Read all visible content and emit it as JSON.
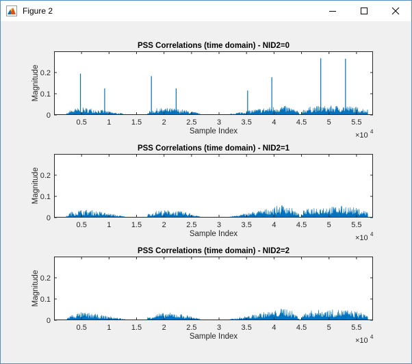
{
  "window": {
    "title": "Figure 2",
    "icon": "matlab-figure-icon",
    "controls": [
      "minimize-icon",
      "maximize-icon",
      "close-icon"
    ]
  },
  "chart_data": [
    {
      "type": "line",
      "title": "PSS Correlations (time domain) - NID2=0",
      "xlabel": "Sample Index",
      "ylabel": "Magnitude",
      "xlim": [
        0,
        58000
      ],
      "ylim": [
        0,
        0.3
      ],
      "x_ticks": [
        5000,
        10000,
        15000,
        20000,
        25000,
        30000,
        35000,
        40000,
        45000,
        50000,
        55000
      ],
      "x_tick_labels": [
        "0.5",
        "1",
        "1.5",
        "2",
        "2.5",
        "3",
        "3.5",
        "4",
        "4.5",
        "5",
        "5.5"
      ],
      "x_exponent_label": "×10",
      "x_exponent": "4",
      "y_ticks": [
        0,
        0.1,
        0.2
      ],
      "y_tick_labels": [
        "0",
        "0.1",
        "0.2"
      ],
      "color": "#0072bd",
      "segments": [
        {
          "x": [
            0,
            2000,
            3000,
            5000,
            7000,
            9000,
            11000,
            13000
          ],
          "y": [
            0,
            0,
            0.02,
            0.028,
            0.025,
            0.018,
            0.01,
            0.004
          ]
        },
        {
          "x": [
            17000,
            19000,
            21000,
            23000,
            25000,
            26500
          ],
          "y": [
            0.012,
            0.026,
            0.026,
            0.022,
            0.014,
            0.006
          ]
        },
        {
          "x": [
            32000,
            34000,
            36000,
            38000,
            40000,
            41500,
            43000,
            44500
          ],
          "y": [
            0.004,
            0.012,
            0.02,
            0.026,
            0.032,
            0.036,
            0.03,
            0.012
          ]
        },
        {
          "x": [
            45000,
            47000,
            49000,
            51000,
            53000,
            55000,
            57000
          ],
          "y": [
            0.02,
            0.034,
            0.034,
            0.036,
            0.036,
            0.03,
            0.022
          ]
        }
      ],
      "peaks": [
        {
          "x": 4800,
          "y": 0.195
        },
        {
          "x": 9200,
          "y": 0.125
        },
        {
          "x": 17700,
          "y": 0.183
        },
        {
          "x": 22200,
          "y": 0.125
        },
        {
          "x": 35200,
          "y": 0.115
        },
        {
          "x": 39600,
          "y": 0.178
        },
        {
          "x": 48500,
          "y": 0.267
        },
        {
          "x": 53000,
          "y": 0.265
        }
      ]
    },
    {
      "type": "line",
      "title": "PSS Correlations (time domain) - NID2=1",
      "xlabel": "Sample Index",
      "ylabel": "Magnitude",
      "xlim": [
        0,
        58000
      ],
      "ylim": [
        0,
        0.3
      ],
      "x_ticks": [
        5000,
        10000,
        15000,
        20000,
        25000,
        30000,
        35000,
        40000,
        45000,
        50000,
        55000
      ],
      "x_tick_labels": [
        "0.5",
        "1",
        "1.5",
        "2",
        "2.5",
        "3",
        "3.5",
        "4",
        "4.5",
        "5",
        "5.5"
      ],
      "x_exponent_label": "×10",
      "x_exponent": "4",
      "y_ticks": [
        0,
        0.1,
        0.2
      ],
      "y_tick_labels": [
        "0",
        "0.1",
        "0.2"
      ],
      "color": "#0072bd",
      "segments": [
        {
          "x": [
            0,
            2000,
            3000,
            5000,
            7000,
            9000,
            11000,
            13000
          ],
          "y": [
            0,
            0,
            0.022,
            0.03,
            0.028,
            0.02,
            0.012,
            0.004
          ]
        },
        {
          "x": [
            17000,
            19000,
            21000,
            23000,
            25000,
            26500
          ],
          "y": [
            0.014,
            0.028,
            0.028,
            0.024,
            0.016,
            0.006
          ]
        },
        {
          "x": [
            32000,
            34000,
            36000,
            38000,
            40000,
            42000,
            43000,
            44500
          ],
          "y": [
            0.004,
            0.012,
            0.022,
            0.03,
            0.04,
            0.052,
            0.04,
            0.014
          ]
        },
        {
          "x": [
            45000,
            47000,
            49000,
            51000,
            53000,
            55000,
            57000
          ],
          "y": [
            0.024,
            0.04,
            0.042,
            0.042,
            0.045,
            0.036,
            0.024
          ]
        }
      ],
      "peaks": []
    },
    {
      "type": "line",
      "title": "PSS Correlations (time domain) - NID2=2",
      "xlabel": "Sample Index",
      "ylabel": "Magnitude",
      "xlim": [
        0,
        58000
      ],
      "ylim": [
        0,
        0.3
      ],
      "x_ticks": [
        5000,
        10000,
        15000,
        20000,
        25000,
        30000,
        35000,
        40000,
        45000,
        50000,
        55000
      ],
      "x_tick_labels": [
        "0.5",
        "1",
        "1.5",
        "2",
        "2.5",
        "3",
        "3.5",
        "4",
        "4.5",
        "5",
        "5.5"
      ],
      "x_exponent_label": "×10",
      "x_exponent": "4",
      "y_ticks": [
        0,
        0.1,
        0.2
      ],
      "y_tick_labels": [
        "0",
        "0.1",
        "0.2"
      ],
      "color": "#0072bd",
      "segments": [
        {
          "x": [
            0,
            2000,
            3000,
            5000,
            7000,
            9000,
            11000,
            13000
          ],
          "y": [
            0,
            0,
            0.02,
            0.03,
            0.026,
            0.018,
            0.012,
            0.004
          ]
        },
        {
          "x": [
            17000,
            19000,
            21000,
            23000,
            25000,
            26500
          ],
          "y": [
            0.012,
            0.026,
            0.028,
            0.024,
            0.016,
            0.006
          ]
        },
        {
          "x": [
            32000,
            34000,
            36000,
            38000,
            40000,
            42000,
            43000,
            44500
          ],
          "y": [
            0.004,
            0.012,
            0.02,
            0.03,
            0.036,
            0.048,
            0.04,
            0.012
          ]
        },
        {
          "x": [
            45000,
            47000,
            49000,
            51000,
            53000,
            55000,
            57000
          ],
          "y": [
            0.022,
            0.038,
            0.04,
            0.04,
            0.04,
            0.034,
            0.022
          ]
        }
      ],
      "peaks": []
    }
  ]
}
